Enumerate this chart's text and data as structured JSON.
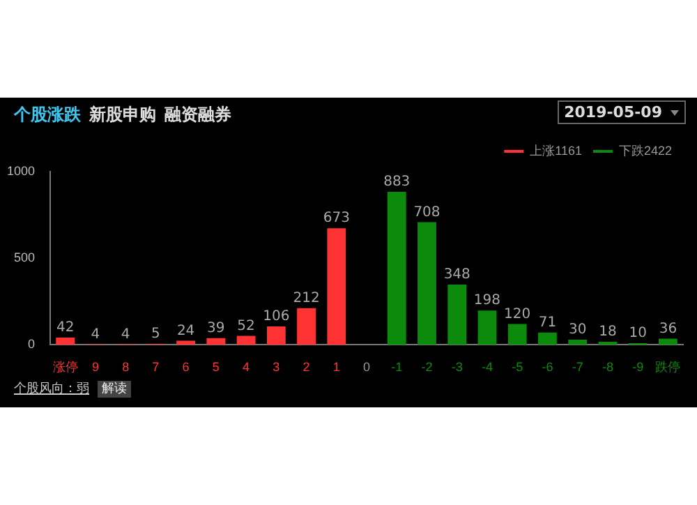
{
  "chart_data": {
    "type": "bar",
    "title": "个股涨跌",
    "categories": [
      "涨停",
      "9",
      "8",
      "7",
      "6",
      "5",
      "4",
      "3",
      "2",
      "1",
      "0",
      "-1",
      "-2",
      "-3",
      "-4",
      "-5",
      "-6",
      "-7",
      "-8",
      "-9",
      "跌停"
    ],
    "series": [
      {
        "name": "上涨1161",
        "color": "#ff3333",
        "values": [
          42,
          4,
          4,
          5,
          24,
          39,
          52,
          106,
          212,
          673,
          null,
          null,
          null,
          null,
          null,
          null,
          null,
          null,
          null,
          null,
          null
        ]
      },
      {
        "name": "下跌2422",
        "color": "#0b8a0b",
        "values": [
          null,
          null,
          null,
          null,
          null,
          null,
          null,
          null,
          null,
          null,
          null,
          883,
          708,
          348,
          198,
          120,
          71,
          30,
          18,
          10,
          36
        ]
      }
    ],
    "ylim": [
      0,
      1000
    ],
    "yticks": [
      0,
      500,
      1000
    ],
    "grid": false,
    "legend": "top right",
    "data_labels": true,
    "annotations": [
      "新股申购",
      "融资融券",
      "2019-05-09",
      "个股风向：弱",
      "解读"
    ]
  }
}
